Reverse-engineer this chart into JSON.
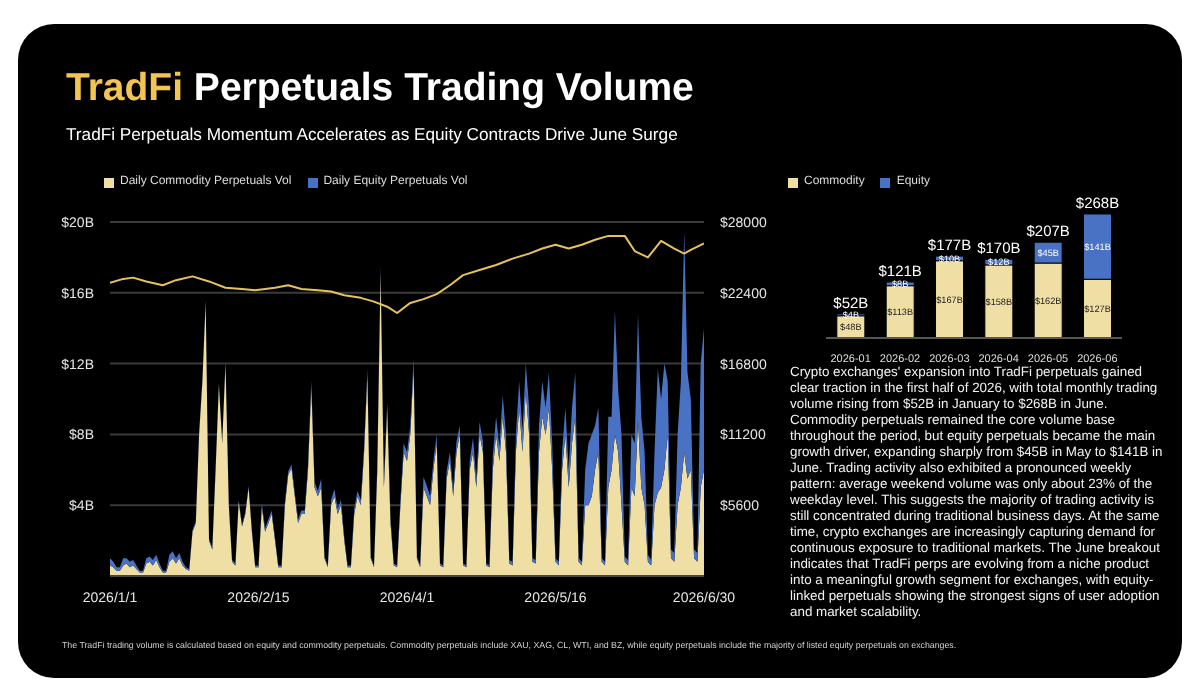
{
  "chart_data": [
    {
      "type": "area",
      "title": "TradFi Perpetuals Trading Volume",
      "subtitle": "TradFi Perpetuals Momentum Accelerates as Equity Contracts Drive June Surge",
      "stacked": true,
      "grid": "y",
      "legend": "top",
      "x": [
        "2026-01-01",
        "2026-01-02",
        "2026-01-03",
        "2026-01-04",
        "2026-01-05",
        "2026-01-06",
        "2026-01-07",
        "2026-01-08",
        "2026-01-09",
        "2026-01-10",
        "2026-01-11",
        "2026-01-12",
        "2026-01-13",
        "2026-01-14",
        "2026-01-15",
        "2026-01-16",
        "2026-01-17",
        "2026-01-18",
        "2026-01-19",
        "2026-01-20",
        "2026-01-21",
        "2026-01-22",
        "2026-01-23",
        "2026-01-24",
        "2026-01-25",
        "2026-01-26",
        "2026-01-27",
        "2026-01-28",
        "2026-01-29",
        "2026-01-30",
        "2026-01-31",
        "2026-02-01",
        "2026-02-02",
        "2026-02-03",
        "2026-02-04",
        "2026-02-05",
        "2026-02-06",
        "2026-02-07",
        "2026-02-08",
        "2026-02-09",
        "2026-02-10",
        "2026-02-11",
        "2026-02-12",
        "2026-02-13",
        "2026-02-14",
        "2026-02-15",
        "2026-02-16",
        "2026-02-17",
        "2026-02-18",
        "2026-02-19",
        "2026-02-20",
        "2026-02-21",
        "2026-02-22",
        "2026-02-23",
        "2026-02-24",
        "2026-02-25",
        "2026-02-26",
        "2026-02-27",
        "2026-02-28",
        "2026-03-01",
        "2026-03-02",
        "2026-03-03",
        "2026-03-04",
        "2026-03-05",
        "2026-03-06",
        "2026-03-07",
        "2026-03-08",
        "2026-03-09",
        "2026-03-10",
        "2026-03-11",
        "2026-03-12",
        "2026-03-13",
        "2026-03-14",
        "2026-03-15",
        "2026-03-16",
        "2026-03-17",
        "2026-03-18",
        "2026-03-19",
        "2026-03-20",
        "2026-03-21",
        "2026-03-22",
        "2026-03-23",
        "2026-03-24",
        "2026-03-25",
        "2026-03-26",
        "2026-03-27",
        "2026-03-28",
        "2026-03-29",
        "2026-03-30",
        "2026-03-31",
        "2026-04-01",
        "2026-04-02",
        "2026-04-03",
        "2026-04-04",
        "2026-04-05",
        "2026-04-06",
        "2026-04-07",
        "2026-04-08",
        "2026-04-09",
        "2026-04-10",
        "2026-04-11",
        "2026-04-12",
        "2026-04-13",
        "2026-04-14",
        "2026-04-15",
        "2026-04-16",
        "2026-04-17",
        "2026-04-18",
        "2026-04-19",
        "2026-04-20",
        "2026-04-21",
        "2026-04-22",
        "2026-04-23",
        "2026-04-24",
        "2026-04-25",
        "2026-04-26",
        "2026-04-27",
        "2026-04-28",
        "2026-04-29",
        "2026-04-30",
        "2026-05-01",
        "2026-05-02",
        "2026-05-03",
        "2026-05-04",
        "2026-05-05",
        "2026-05-06",
        "2026-05-07",
        "2026-05-08",
        "2026-05-09",
        "2026-05-10",
        "2026-05-11",
        "2026-05-12",
        "2026-05-13",
        "2026-05-14",
        "2026-05-15",
        "2026-05-16",
        "2026-05-17",
        "2026-05-18",
        "2026-05-19",
        "2026-05-20",
        "2026-05-21",
        "2026-05-22",
        "2026-05-23",
        "2026-05-24",
        "2026-05-25",
        "2026-05-26",
        "2026-05-27",
        "2026-05-28",
        "2026-05-29",
        "2026-05-30",
        "2026-05-31",
        "2026-06-01",
        "2026-06-02",
        "2026-06-03",
        "2026-06-04",
        "2026-06-05",
        "2026-06-06",
        "2026-06-07",
        "2026-06-08",
        "2026-06-09",
        "2026-06-10",
        "2026-06-11",
        "2026-06-12",
        "2026-06-13",
        "2026-06-14",
        "2026-06-15",
        "2026-06-16",
        "2026-06-17",
        "2026-06-18",
        "2026-06-19",
        "2026-06-20",
        "2026-06-21",
        "2026-06-22",
        "2026-06-23",
        "2026-06-24",
        "2026-06-25",
        "2026-06-26",
        "2026-06-27",
        "2026-06-28",
        "2026-06-29",
        "2026-06-30"
      ],
      "series": [
        {
          "name": "Daily Commodity Perpetuals Vol",
          "color": "#f0dfa4",
          "values": [
            0.6,
            0.5,
            0.3,
            0.3,
            0.6,
            0.7,
            0.5,
            0.6,
            0.4,
            0.2,
            0.2,
            0.7,
            0.8,
            0.6,
            0.9,
            0.5,
            0.2,
            0.2,
            0.8,
            1.0,
            0.7,
            1.0,
            0.6,
            0.4,
            0.3,
            2.5,
            3.0,
            8.0,
            11.0,
            15.5,
            2.0,
            1.5,
            6.0,
            10.8,
            7.5,
            12.0,
            4.0,
            0.8,
            0.6,
            4.2,
            2.8,
            3.5,
            5.0,
            2.5,
            0.5,
            0.5,
            3.9,
            2.5,
            3.0,
            3.5,
            2.0,
            0.5,
            0.5,
            4.0,
            5.7,
            6.1,
            4.5,
            3.0,
            3.5,
            3.5,
            6.0,
            10.7,
            5.0,
            4.5,
            5.0,
            1.0,
            0.5,
            4.0,
            4.5,
            3.5,
            4.0,
            2.0,
            0.5,
            0.5,
            3.5,
            4.5,
            4.0,
            7.0,
            11.4,
            1.0,
            0.5,
            6.0,
            17.2,
            5.0,
            9.5,
            3.0,
            0.6,
            0.5,
            4.0,
            7.0,
            6.5,
            8.0,
            11.8,
            1.0,
            0.5,
            5.0,
            4.5,
            4.0,
            6.0,
            7.5,
            0.6,
            0.5,
            5.5,
            6.5,
            4.5,
            7.0,
            8.0,
            0.6,
            0.5,
            6.0,
            7.0,
            5.0,
            8.0,
            7.0,
            0.6,
            0.5,
            6.0,
            8.0,
            6.5,
            9.0,
            7.0,
            0.7,
            0.6,
            7.0,
            9.5,
            7.0,
            10.5,
            8.0,
            0.8,
            0.7,
            7.0,
            9.0,
            8.0,
            9.5,
            6.0,
            0.8,
            0.6,
            6.0,
            8.0,
            5.0,
            7.5,
            9.0,
            0.8,
            0.6,
            4.0,
            4.0,
            4.5,
            6.0,
            7.0,
            0.8,
            0.6,
            5.0,
            6.0,
            8.0,
            7.0,
            4.0,
            0.8,
            0.6,
            5.0,
            4.5,
            8.8,
            5.0,
            4.0,
            0.8,
            0.6,
            4.0,
            4.7,
            5.0,
            6.0,
            8.0,
            1.0,
            0.8,
            4.0,
            5.0,
            7.0,
            5.5,
            6.0,
            1.0,
            0.8,
            5.0,
            6.0
          ]
        },
        {
          "name": "Daily Equity Perpetuals Vol",
          "color": "#4a72c4",
          "values": [
            0.4,
            0.3,
            0.2,
            0.2,
            0.4,
            0.3,
            0.3,
            0.3,
            0.2,
            0.1,
            0.1,
            0.3,
            0.3,
            0.3,
            0.3,
            0.2,
            0.1,
            0.1,
            0.4,
            0.4,
            0.3,
            0.3,
            0.2,
            0.1,
            0.1,
            0.1,
            0.1,
            0.1,
            0.1,
            0.1,
            0.1,
            0.1,
            0.1,
            0.1,
            0.1,
            0.1,
            0.1,
            0.1,
            0.1,
            0.1,
            0.1,
            0.1,
            0.1,
            0.1,
            0.1,
            0.1,
            0.2,
            0.2,
            0.2,
            0.2,
            0.2,
            0.1,
            0.1,
            0.2,
            0.2,
            0.2,
            0.2,
            0.2,
            0.2,
            0.2,
            0.3,
            0.3,
            0.3,
            0.3,
            0.5,
            0.1,
            0.1,
            0.3,
            0.4,
            0.3,
            0.3,
            0.2,
            0.1,
            0.1,
            0.3,
            0.3,
            0.3,
            0.3,
            0.3,
            0.1,
            0.1,
            0.3,
            0.3,
            0.3,
            0.3,
            0.3,
            0.1,
            0.1,
            0.3,
            0.5,
            0.5,
            0.5,
            0.5,
            0.1,
            0.1,
            0.6,
            0.6,
            0.5,
            0.5,
            0.5,
            0.1,
            0.1,
            0.4,
            0.5,
            0.4,
            0.6,
            0.5,
            0.1,
            0.1,
            0.5,
            0.8,
            0.5,
            0.7,
            0.6,
            0.1,
            0.1,
            0.8,
            1.0,
            0.8,
            1.2,
            1.0,
            0.2,
            0.2,
            1.0,
            1.5,
            1.2,
            1.5,
            1.5,
            0.2,
            0.2,
            1.5,
            2.0,
            1.5,
            2.0,
            1.5,
            0.2,
            0.2,
            1.0,
            1.5,
            1.0,
            2.0,
            2.5,
            0.2,
            0.2,
            2.0,
            3.5,
            3.5,
            2.5,
            2.5,
            0.2,
            0.2,
            4.0,
            3.0,
            7.0,
            3.5,
            4.0,
            0.3,
            0.3,
            3.0,
            3.0,
            6.0,
            4.0,
            3.0,
            0.4,
            0.3,
            3.0,
            7.0,
            5.0,
            6.0,
            3.0,
            0.5,
            0.5,
            4.0,
            6.0,
            12.5,
            6.0,
            4.0,
            0.5,
            0.5,
            7.0,
            8.0
          ]
        },
        {
          "type": "line",
          "axis": "y2",
          "color": "#e6c25c",
          "x": [
            "2026-01-01",
            "2026-01-05",
            "2026-01-08",
            "2026-01-12",
            "2026-01-17",
            "2026-01-21",
            "2026-01-26",
            "2026-01-31",
            "2026-02-05",
            "2026-02-10",
            "2026-02-14",
            "2026-02-20",
            "2026-02-24",
            "2026-02-28",
            "2026-03-05",
            "2026-03-09",
            "2026-03-13",
            "2026-03-18",
            "2026-03-22",
            "2026-03-26",
            "2026-03-29",
            "2026-04-02",
            "2026-04-06",
            "2026-04-10",
            "2026-04-14",
            "2026-04-18",
            "2026-04-23",
            "2026-04-28",
            "2026-05-03",
            "2026-05-08",
            "2026-05-12",
            "2026-05-16",
            "2026-05-20",
            "2026-05-24",
            "2026-05-28",
            "2026-06-01",
            "2026-06-06",
            "2026-06-09",
            "2026-06-13",
            "2026-06-17",
            "2026-06-21",
            "2026-06-24",
            "2026-06-26",
            "2026-06-30"
          ],
          "values": [
            23200,
            23500,
            23600,
            23300,
            23000,
            23400,
            23700,
            23300,
            22800,
            22700,
            22600,
            22800,
            23000,
            22700,
            22600,
            22500,
            22200,
            22000,
            21700,
            21300,
            20800,
            21600,
            21900,
            22300,
            23000,
            23800,
            24200,
            24600,
            25100,
            25500,
            25900,
            26200,
            25900,
            26200,
            26600,
            26900,
            26900,
            25700,
            25200,
            26500,
            25900,
            25500,
            25800,
            26300
          ]
        }
      ],
      "xlim": [
        "2026-01-01",
        "2026-06-30"
      ],
      "xticks": [
        {
          "value": "2026-01-01",
          "label": "2026/1/1"
        },
        {
          "value": "2026-02-15",
          "label": "2026/2/15"
        },
        {
          "value": "2026-04-01",
          "label": "2026/4/1"
        },
        {
          "value": "2026-05-16",
          "label": "2026/5/16"
        },
        {
          "value": "2026-06-30",
          "label": "2026/6/30"
        }
      ],
      "ylim": [
        0,
        20
      ],
      "yticks": [
        {
          "value": 4,
          "label": "$4B"
        },
        {
          "value": 8,
          "label": "$8B"
        },
        {
          "value": 12,
          "label": "$12B"
        },
        {
          "value": 16,
          "label": "$16B"
        },
        {
          "value": 20,
          "label": "$20B"
        }
      ],
      "y2lim": [
        0,
        28000
      ],
      "y2ticks": [
        {
          "value": 5600,
          "label": "$5600"
        },
        {
          "value": 11200,
          "label": "$11200"
        },
        {
          "value": 16800,
          "label": "$16800"
        },
        {
          "value": 22400,
          "label": "$22400"
        },
        {
          "value": 28000,
          "label": "$28000"
        }
      ],
      "annotations": [
        "The TradFi trading volume is calculated based on equity and commodity perpetuals. Commodity perpetuals include XAU, XAG, CL, WTI, and BZ, while equity perpetuals include the majority of listed equity perpetuals on exchanges."
      ]
    },
    {
      "type": "bar",
      "stacked": true,
      "legend": "top",
      "categories": [
        "2026-01",
        "2026-02",
        "2026-03",
        "2026-04",
        "2026-05",
        "2026-06"
      ],
      "series": [
        {
          "name": "Commodity",
          "color": "#f0dfa4",
          "values": [
            48,
            113,
            167,
            158,
            162,
            127
          ],
          "value_labels": [
            "$48B",
            "$113B",
            "$167B",
            "$158B",
            "$162B",
            "$127B"
          ]
        },
        {
          "name": "Equity",
          "color": "#4a72c4",
          "values": [
            4,
            8,
            10,
            12,
            45,
            141
          ],
          "value_labels": [
            "$4B",
            "$8B",
            "$10B",
            "$12B",
            "$45B",
            "$141B"
          ]
        }
      ],
      "totals": [
        "$52B",
        "$121B",
        "$177B",
        "$170B",
        "$207B",
        "$268B"
      ],
      "annotations": [
        "Crypto exchanges' expansion into TradFi perpetuals gained clear traction in the first half of 2026, with total monthly trading volume rising from $52B in January to $268B in June. Commodity perpetuals remained the core volume base throughout the period, but equity perpetuals became the main growth driver, expanding sharply from $45B in May to $141B in June. Trading activity also exhibited a pronounced weekly pattern: average weekend volume was only about 23% of the weekday level. This suggests the majority of trading activity is still concentrated during traditional business days. At the same time, crypto exchanges are increasingly capturing demand for continuous exposure to traditional markets. The June breakout indicates that TradFi perps are evolving from a niche product into a meaningful growth segment for exchanges, with equity-linked perpetuals showing the strongest signs of user adoption and market scalability."
      ]
    }
  ]
}
